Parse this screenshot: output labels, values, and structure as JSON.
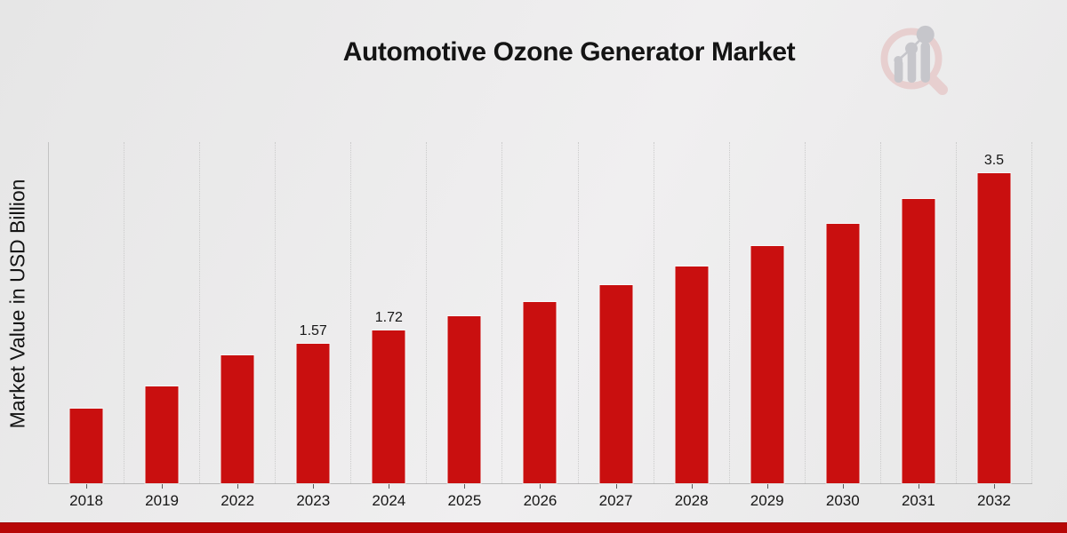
{
  "chart_data": {
    "type": "bar",
    "title": "Automotive Ozone Generator Market",
    "categories": [
      "2018",
      "2019",
      "2022",
      "2023",
      "2024",
      "2025",
      "2026",
      "2027",
      "2028",
      "2029",
      "2030",
      "2031",
      "2032"
    ],
    "values": [
      0.84,
      1.09,
      1.44,
      1.57,
      1.72,
      1.88,
      2.05,
      2.24,
      2.45,
      2.68,
      2.93,
      3.21,
      3.5
    ],
    "bar_labels": [
      "",
      "",
      "",
      "1.57",
      "1.72",
      "",
      "",
      "",
      "",
      "",
      "",
      "",
      "3.5"
    ],
    "xlabel": "",
    "ylabel": "Market Value in USD Billion",
    "ylim": [
      0,
      3.85
    ],
    "grid": "vertical-dotted-column-separators",
    "legend": "none",
    "bar_color": "#c90f0f"
  },
  "branding": {
    "logo_icon": "magnifier-bar-chart-logo",
    "footer_strip_color": "#b70707"
  },
  "colors": {
    "background_start": "#e6e6e6",
    "background_end": "#f0eff0",
    "axis": "#c3c3c3",
    "gridline": "#cbcbcb",
    "text": "#161616",
    "logo_ring": "#e7cfcf",
    "logo_gray": "#c6c6cb"
  }
}
